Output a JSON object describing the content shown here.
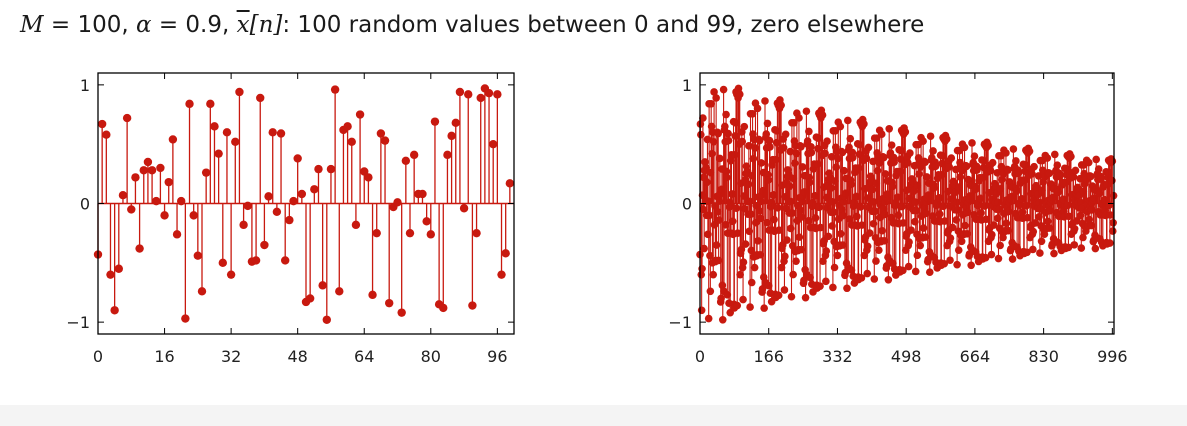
{
  "title": {
    "M_sym": "M",
    "M_rest": " = 100, ",
    "alpha_sym": "α",
    "alpha_rest": " = 0.9, ",
    "x_sym": "x",
    "n_part": "[n]",
    "rest": ": 100 random values between 0 and 99, zero elsewhere"
  },
  "colors": {
    "stem": "#c8190f",
    "axis": "#000000",
    "baseline": "#c8190f"
  },
  "chart_data": [
    {
      "type": "stem",
      "xlim": [
        0,
        100
      ],
      "ylim": [
        -1.1,
        1.1
      ],
      "x_ticks": [
        "0",
        "16",
        "32",
        "48",
        "64",
        "80",
        "96"
      ],
      "x_tick_values": [
        0,
        16,
        32,
        48,
        64,
        80,
        96
      ],
      "y_ticks": [
        "1",
        "0",
        "−1"
      ],
      "y_tick_values": [
        1,
        0,
        -1
      ],
      "x": [
        0,
        1,
        2,
        3,
        4,
        5,
        6,
        7,
        8,
        9,
        10,
        11,
        12,
        13,
        14,
        15,
        16,
        17,
        18,
        19,
        20,
        21,
        22,
        23,
        24,
        25,
        26,
        27,
        28,
        29,
        30,
        31,
        32,
        33,
        34,
        35,
        36,
        37,
        38,
        39,
        40,
        41,
        42,
        43,
        44,
        45,
        46,
        47,
        48,
        49,
        50,
        51,
        52,
        53,
        54,
        55,
        56,
        57,
        58,
        59,
        60,
        61,
        62,
        63,
        64,
        65,
        66,
        67,
        68,
        69,
        70,
        71,
        72,
        73,
        74,
        75,
        76,
        77,
        78,
        79,
        80,
        81,
        82,
        83,
        84,
        85,
        86,
        87,
        88,
        89,
        90,
        91,
        92,
        93,
        94,
        95,
        96,
        97,
        98,
        99
      ],
      "values": [
        -0.43,
        0.67,
        0.58,
        -0.6,
        -0.9,
        -0.55,
        0.07,
        0.72,
        -0.05,
        0.22,
        -0.38,
        0.28,
        0.35,
        0.28,
        0.02,
        0.3,
        -0.1,
        0.18,
        0.54,
        -0.26,
        0.02,
        -0.97,
        0.84,
        -0.1,
        -0.44,
        -0.74,
        0.26,
        0.84,
        0.65,
        0.42,
        -0.5,
        0.6,
        -0.6,
        0.52,
        0.94,
        -0.18,
        -0.02,
        -0.49,
        -0.48,
        0.89,
        -0.35,
        0.06,
        0.6,
        -0.07,
        0.59,
        -0.48,
        -0.14,
        0.02,
        0.38,
        0.08,
        -0.83,
        -0.8,
        0.12,
        0.29,
        -0.69,
        -0.98,
        0.29,
        0.96,
        -0.74,
        0.62,
        0.65,
        0.52,
        -0.18,
        0.75,
        0.27,
        0.22,
        -0.77,
        -0.25,
        0.59,
        0.53,
        -0.84,
        -0.03,
        0.01,
        -0.92,
        0.36,
        -0.25,
        0.41,
        0.08,
        0.08,
        -0.15,
        -0.26,
        0.69,
        -0.85,
        -0.88,
        0.41,
        0.57,
        0.68,
        0.94,
        -0.04,
        0.92,
        -0.86,
        -0.25,
        0.89,
        0.97,
        0.93,
        0.5,
        0.92,
        -0.6,
        -0.42,
        0.17
      ]
    },
    {
      "type": "stem",
      "xlim": [
        0,
        1000
      ],
      "ylim": [
        -1.1,
        1.1
      ],
      "x_ticks": [
        "0",
        "166",
        "332",
        "498",
        "664",
        "830",
        "996"
      ],
      "x_tick_values": [
        0,
        166,
        332,
        498,
        664,
        830,
        996
      ],
      "y_ticks": [
        "1",
        "0",
        "−1"
      ],
      "y_tick_values": [
        1,
        0,
        -1
      ],
      "period": 100,
      "length": 1000,
      "alpha": 0.9,
      "envelope": "y[n] = alpha^floor(n/100) * x[n mod 100]"
    }
  ]
}
